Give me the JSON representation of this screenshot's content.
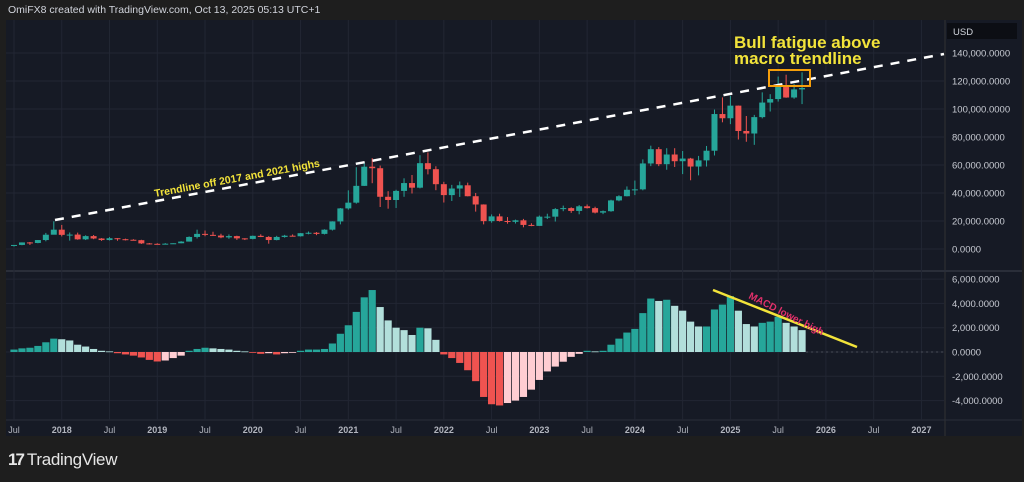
{
  "header": {
    "attribution": "OmiFX8 created with TradingView.com, Oct 13, 2025 05:13 UTC+1"
  },
  "footer": {
    "brand": "TradingView"
  },
  "colors": {
    "up": "#26a69a",
    "up_light": "#b2dfdb",
    "down": "#ef5350",
    "down_light": "#ffcdd2",
    "annotation_yellow": "#f2e33a",
    "box_orange": "#f59e0b",
    "macd_text": "#e0306a",
    "background": "#161a25"
  },
  "chart_data": [
    {
      "type": "candlestick",
      "currency_label": "USD",
      "interval": "monthly",
      "y_ticks": [
        "140,000.0000",
        "120,000.0000",
        "100,000.0000",
        "80,000.0000",
        "60,000.0000",
        "40,000.0000",
        "20,000.0000",
        "0.0000"
      ],
      "ylim": [
        -10000,
        160000
      ],
      "start": "2017-07",
      "ohlc": [
        [
          2400,
          2900,
          1800,
          2900
        ],
        [
          2900,
          4700,
          2700,
          4700
        ],
        [
          4700,
          5000,
          2900,
          4300
        ],
        [
          4300,
          6400,
          4100,
          6400
        ],
        [
          6400,
          11500,
          5500,
          10200
        ],
        [
          10200,
          19800,
          10700,
          13800
        ],
        [
          13800,
          17200,
          9000,
          10100
        ],
        [
          10100,
          11800,
          6000,
          10300
        ],
        [
          10300,
          11700,
          6600,
          6900
        ],
        [
          6900,
          9800,
          6400,
          9200
        ],
        [
          9200,
          10000,
          7000,
          7500
        ],
        [
          7500,
          7800,
          5800,
          6400
        ],
        [
          6400,
          8500,
          6100,
          7700
        ],
        [
          7700,
          7800,
          5900,
          7000
        ],
        [
          7000,
          7400,
          6100,
          6600
        ],
        [
          6600,
          7000,
          6200,
          6300
        ],
        [
          6300,
          6600,
          3600,
          4000
        ],
        [
          4000,
          4300,
          3200,
          3700
        ],
        [
          3700,
          4100,
          3400,
          3400
        ],
        [
          3400,
          4200,
          3400,
          3800
        ],
        [
          3800,
          4100,
          3700,
          4100
        ],
        [
          4100,
          5600,
          4100,
          5300
        ],
        [
          5300,
          9000,
          5300,
          8600
        ],
        [
          8600,
          13800,
          7500,
          10800
        ],
        [
          10800,
          13200,
          9100,
          10100
        ],
        [
          10100,
          12300,
          9400,
          9600
        ],
        [
          9600,
          10900,
          7700,
          8300
        ],
        [
          8300,
          10400,
          7300,
          9200
        ],
        [
          9200,
          9500,
          6500,
          7600
        ],
        [
          7600,
          7700,
          6400,
          7200
        ],
        [
          7200,
          9600,
          6900,
          9400
        ],
        [
          9400,
          10500,
          8500,
          8600
        ],
        [
          8600,
          9200,
          3800,
          6400
        ],
        [
          6400,
          9400,
          6200,
          8600
        ],
        [
          8600,
          10100,
          8100,
          9500
        ],
        [
          9500,
          10400,
          8900,
          9100
        ],
        [
          9100,
          11400,
          8900,
          11300
        ],
        [
          11300,
          12500,
          10500,
          11600
        ],
        [
          11600,
          12100,
          9900,
          10800
        ],
        [
          10800,
          14100,
          10400,
          13800
        ],
        [
          13800,
          19800,
          13200,
          19700
        ],
        [
          19700,
          29300,
          17600,
          29000
        ],
        [
          29000,
          41900,
          28100,
          33100
        ],
        [
          33100,
          58400,
          32400,
          45100
        ],
        [
          45100,
          61800,
          45000,
          58800
        ],
        [
          58800,
          64900,
          47000,
          57700
        ],
        [
          57700,
          59600,
          30000,
          37300
        ],
        [
          37300,
          41300,
          28800,
          35000
        ],
        [
          35000,
          42300,
          29300,
          41500
        ],
        [
          41500,
          50500,
          37300,
          47100
        ],
        [
          47100,
          52900,
          39600,
          43800
        ],
        [
          43800,
          67000,
          43300,
          61300
        ],
        [
          61300,
          69000,
          53300,
          57000
        ],
        [
          57000,
          59100,
          42000,
          46300
        ],
        [
          46300,
          48000,
          33200,
          38500
        ],
        [
          38500,
          45800,
          34300,
          43200
        ],
        [
          43200,
          48200,
          37200,
          45500
        ],
        [
          45500,
          47400,
          37600,
          37700
        ],
        [
          37700,
          40000,
          26700,
          31800
        ],
        [
          31800,
          31900,
          17600,
          19900
        ],
        [
          19900,
          24700,
          18800,
          23300
        ],
        [
          23300,
          25200,
          19600,
          20000
        ],
        [
          20000,
          22800,
          18100,
          19400
        ],
        [
          19400,
          21000,
          18200,
          20500
        ],
        [
          20500,
          21500,
          15500,
          17200
        ],
        [
          17200,
          18400,
          16300,
          16500
        ],
        [
          16500,
          23900,
          16500,
          23100
        ],
        [
          23100,
          25200,
          21400,
          23100
        ],
        [
          23100,
          29200,
          19600,
          28500
        ],
        [
          28500,
          31000,
          27000,
          29200
        ],
        [
          29200,
          29800,
          25800,
          27200
        ],
        [
          27200,
          31400,
          24800,
          30500
        ],
        [
          30500,
          31800,
          28900,
          29200
        ],
        [
          29200,
          30200,
          25400,
          26000
        ],
        [
          26000,
          27500,
          24900,
          27000
        ],
        [
          27000,
          35200,
          26600,
          34700
        ],
        [
          34700,
          38400,
          34100,
          37700
        ],
        [
          37700,
          44700,
          37600,
          42300
        ],
        [
          42300,
          48900,
          38500,
          42600
        ],
        [
          42600,
          64000,
          41900,
          61100
        ],
        [
          61100,
          73800,
          59200,
          71300
        ],
        [
          71300,
          72800,
          59200,
          60600
        ],
        [
          60600,
          72000,
          56600,
          67500
        ],
        [
          67500,
          72000,
          58600,
          62700
        ],
        [
          62700,
          70000,
          53500,
          64600
        ],
        [
          64600,
          65100,
          49100,
          58900
        ],
        [
          58900,
          66500,
          52600,
          63300
        ],
        [
          63300,
          73600,
          58900,
          70200
        ],
        [
          70200,
          99600,
          66800,
          96400
        ],
        [
          96400,
          108300,
          90500,
          93400
        ],
        [
          93400,
          109400,
          89200,
          102400
        ],
        [
          102400,
          102500,
          78200,
          84300
        ],
        [
          84300,
          95000,
          76600,
          82500
        ],
        [
          82500,
          95800,
          74400,
          94200
        ],
        [
          94200,
          111900,
          93300,
          104600
        ],
        [
          104600,
          110600,
          98200,
          107100
        ],
        [
          107100,
          123200,
          105300,
          115700
        ],
        [
          115700,
          124500,
          108000,
          108200
        ],
        [
          108200,
          117900,
          107300,
          114000
        ],
        [
          114000,
          126200,
          103500,
          115000
        ]
      ],
      "annotations": {
        "trendline_label": "Trendline off 2017 and 2021 highs",
        "headline": [
          "Bull fatigue above",
          "macro trendline"
        ]
      }
    },
    {
      "type": "histogram",
      "name": "MACD",
      "y_ticks": [
        "6,000.0000",
        "4,000.0000",
        "2,000.0000",
        "0.0000",
        "-2,000.0000",
        "-4,000.0000"
      ],
      "ylim": [
        -5500,
        6500
      ],
      "values": [
        200,
        300,
        350,
        500,
        800,
        1100,
        1050,
        950,
        600,
        450,
        250,
        100,
        50,
        -100,
        -200,
        -300,
        -450,
        -650,
        -780,
        -700,
        -500,
        -300,
        100,
        250,
        350,
        300,
        250,
        200,
        100,
        50,
        -50,
        -150,
        -100,
        -200,
        -100,
        -50,
        100,
        200,
        200,
        250,
        700,
        1500,
        2200,
        3300,
        4500,
        5100,
        3700,
        2600,
        2000,
        1800,
        1400,
        2000,
        1950,
        1000,
        -200,
        -500,
        -900,
        -1500,
        -2400,
        -3700,
        -4300,
        -4400,
        -4200,
        -4000,
        -3700,
        -3100,
        -2300,
        -1600,
        -1200,
        -800,
        -400,
        -150,
        100,
        50,
        100,
        600,
        1100,
        1600,
        1900,
        3200,
        4400,
        4200,
        4300,
        3800,
        3400,
        2500,
        2100,
        2100,
        3500,
        3900,
        4600,
        3400,
        2300,
        2100,
        2400,
        2500,
        2900,
        2400,
        2100,
        1800
      ],
      "annotation": "MACD lower high"
    }
  ],
  "x_axis": {
    "ticks": [
      "Jul",
      "2018",
      "Jul",
      "2019",
      "Jul",
      "2020",
      "Jul",
      "2021",
      "Jul",
      "2022",
      "Jul",
      "2023",
      "Jul",
      "2024",
      "Jul",
      "2025",
      "Jul",
      "2026",
      "Jul",
      "2027"
    ]
  }
}
